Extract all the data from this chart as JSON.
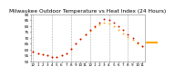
{
  "title": "Milwaukee Outdoor Temperature vs Heat Index (24 Hours)",
  "hours": [
    0,
    1,
    2,
    3,
    4,
    5,
    6,
    7,
    8,
    9,
    10,
    11,
    12,
    13,
    14,
    15,
    16,
    17,
    18,
    19,
    20,
    21,
    22,
    23
  ],
  "temp": [
    58,
    57,
    56,
    55,
    54,
    54,
    55,
    57,
    61,
    65,
    69,
    73,
    76,
    79,
    81,
    83,
    82,
    80,
    77,
    74,
    71,
    68,
    65,
    63
  ],
  "heat_index": [
    58,
    57,
    56,
    55,
    54,
    54,
    55,
    57,
    61,
    65,
    69,
    73,
    77,
    80,
    83,
    86,
    85,
    83,
    80,
    77,
    73,
    70,
    66,
    63
  ],
  "ylim": [
    50,
    90
  ],
  "yticks": [
    50,
    55,
    60,
    65,
    70,
    75,
    80,
    85,
    90
  ],
  "xtick_labels": [
    "12",
    "1",
    "2",
    "3",
    "4",
    "5",
    "6",
    "7",
    "8",
    "9",
    "10",
    "11",
    "12",
    "1",
    "2",
    "3",
    "4",
    "5",
    "6",
    "7",
    "8",
    "9",
    "10",
    "11"
  ],
  "grid_positions": [
    0,
    4,
    8,
    12,
    16,
    20
  ],
  "temp_color": "#FFA500",
  "heat_color": "#CC0000",
  "bg_color": "#ffffff",
  "legend_line_color": "#FFA500",
  "title_fontsize": 4.2,
  "tick_fontsize": 3.0,
  "marker_size": 1.8
}
